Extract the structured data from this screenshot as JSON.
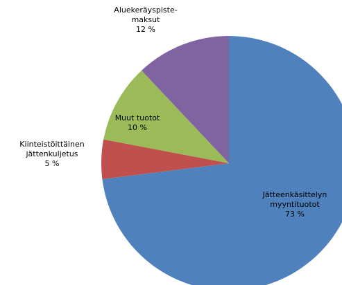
{
  "chart_data": {
    "type": "pie",
    "categories": [
      "Jätteenkäsittelyn\nmyyntituotot",
      "Kiinteistöittäinen\njättenkuljetus",
      "Muut tuotot",
      "Aluekeräyspiste-\nmaksut"
    ],
    "values": [
      73,
      5,
      10,
      12
    ],
    "value_labels": [
      "73 %",
      "5 %",
      "10 %",
      "12 %"
    ],
    "colors": [
      "#4f81bd",
      "#c0504d",
      "#9bbb59",
      "#8064a2"
    ]
  }
}
